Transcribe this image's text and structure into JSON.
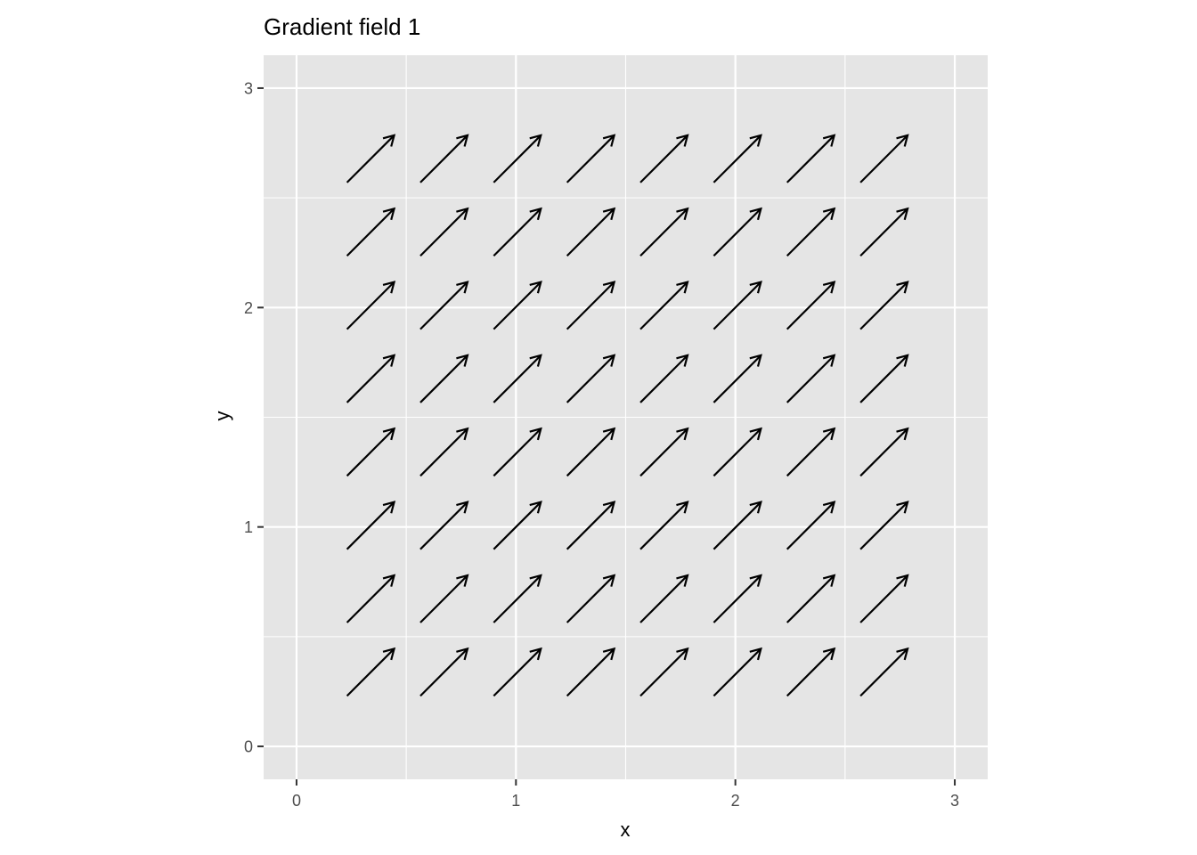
{
  "chart_data": {
    "type": "vector-field",
    "title": "Gradient field 1",
    "xlabel": "x",
    "ylabel": "y",
    "xlim": [
      -0.15,
      3.15
    ],
    "ylim": [
      -0.15,
      3.15
    ],
    "x_ticks": [
      0,
      1,
      2,
      3
    ],
    "y_ticks": [
      0,
      1,
      2,
      3
    ],
    "x_tick_labels": [
      "0",
      "1",
      "2",
      "3"
    ],
    "y_tick_labels": [
      "0",
      "1",
      "2",
      "3"
    ],
    "x_minor": [
      0.5,
      1.5,
      2.5
    ],
    "y_minor": [
      0.5,
      1.5,
      2.5
    ],
    "grid": true,
    "panel_color": "#e5e5e5",
    "arrow_color": "#000000",
    "arrow_x": [
      0.23,
      0.5642857,
      0.8985714,
      1.2328571,
      1.5671429,
      1.9014286,
      2.2357143,
      2.57
    ],
    "arrow_y": [
      0.23,
      0.5642857,
      0.8985714,
      1.2328571,
      1.5671429,
      1.9014286,
      2.2357143,
      2.57
    ],
    "dx": 0.215,
    "dy": 0.215
  }
}
